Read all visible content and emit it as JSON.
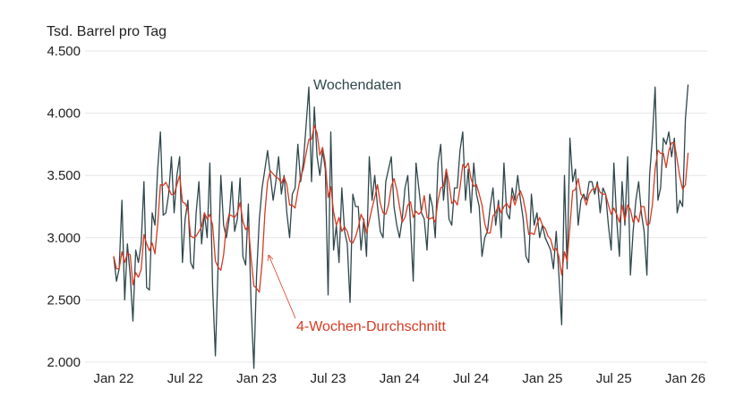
{
  "chart_data": {
    "type": "line",
    "ylabel": "Tsd. Barrel pro Tag",
    "ylim": [
      2000,
      4500
    ],
    "yticks": [
      2000,
      2500,
      3000,
      3500,
      4000,
      4500
    ],
    "ytick_labels": [
      "2.000",
      "2.500",
      "3.000",
      "3.500",
      "4.000",
      "4.500"
    ],
    "xtick_labels": [
      "Jan 22",
      "Jul 22",
      "Jan 23",
      "Jul 23",
      "Jan 24",
      "Jul 24",
      "Jan 25",
      "Jul 25",
      "Jan 26"
    ],
    "xtick_week_index": [
      0,
      26,
      52,
      78,
      104,
      130,
      156,
      182,
      208
    ],
    "grid": true,
    "colors": {
      "weekly": "#2e474c",
      "average": "#d63a22"
    },
    "annotations": {
      "weekly": "Wochendaten",
      "average": "4-Wochen-Durchschnitt"
    },
    "series": [
      {
        "name": "Wochendaten",
        "values": [
          2850,
          2650,
          2750,
          3300,
          2500,
          2950,
          2700,
          2330,
          2900,
          2800,
          2950,
          3450,
          2600,
          2580,
          3200,
          3100,
          3550,
          3850,
          3180,
          3200,
          3350,
          3650,
          3200,
          3500,
          3650,
          2800,
          3150,
          3300,
          2800,
          2750,
          3200,
          3450,
          2950,
          3200,
          3000,
          3600,
          2600,
          2050,
          2800,
          3500,
          3100,
          3000,
          3150,
          3450,
          3050,
          3150,
          3480,
          2850,
          2780,
          3270,
          2450,
          1950,
          2700,
          3150,
          3400,
          3550,
          3700,
          3500,
          3300,
          3450,
          3650,
          3350,
          3500,
          3200,
          3000,
          3350,
          3400,
          3750,
          3450,
          3600,
          3900,
          4210,
          3450,
          4050,
          3650,
          3500,
          3700,
          3550,
          2540,
          3850,
          2900,
          3100,
          2800,
          3400,
          3050,
          2950,
          2480,
          3350,
          3250,
          3250,
          2900,
          3150,
          2850,
          3650,
          3300,
          3500,
          3250,
          3050,
          3000,
          3450,
          3550,
          3650,
          3250,
          3100,
          3000,
          3150,
          3400,
          3500,
          3100,
          2650,
          3600,
          3400,
          3200,
          3150,
          2900,
          3350,
          3250,
          3000,
          3600,
          3750,
          3300,
          3550,
          3150,
          3100,
          3400,
          3400,
          3700,
          3850,
          3300,
          3550,
          3200,
          3600,
          3350,
          3250,
          2850,
          3000,
          3050,
          3250,
          3400,
          3100,
          3300,
          3000,
          3600,
          3200,
          3150,
          3400,
          3300,
          3500,
          3300,
          3150,
          2850,
          2800,
          3350,
          3100,
          3200,
          3000,
          3100,
          3000,
          2950,
          2900,
          2750,
          3050,
          2700,
          2300,
          3500,
          2750,
          3800,
          3450,
          3550,
          3100,
          3300,
          3350,
          3300,
          3450,
          3450,
          3350,
          3450,
          3200,
          3400,
          3350,
          3100,
          2900,
          3600,
          3150,
          2850,
          3450,
          3100,
          3650,
          2700,
          3050,
          3300,
          3450,
          3200,
          3050,
          2700,
          3500,
          3800,
          4210,
          3300,
          3400,
          3800,
          3750,
          3850,
          3650,
          3800,
          3200,
          3300,
          3250,
          3950,
          4230
        ]
      },
      {
        "name": "4-Wochen-Durchschnitt",
        "window": 4,
        "derived_from": "Wochendaten"
      }
    ]
  }
}
